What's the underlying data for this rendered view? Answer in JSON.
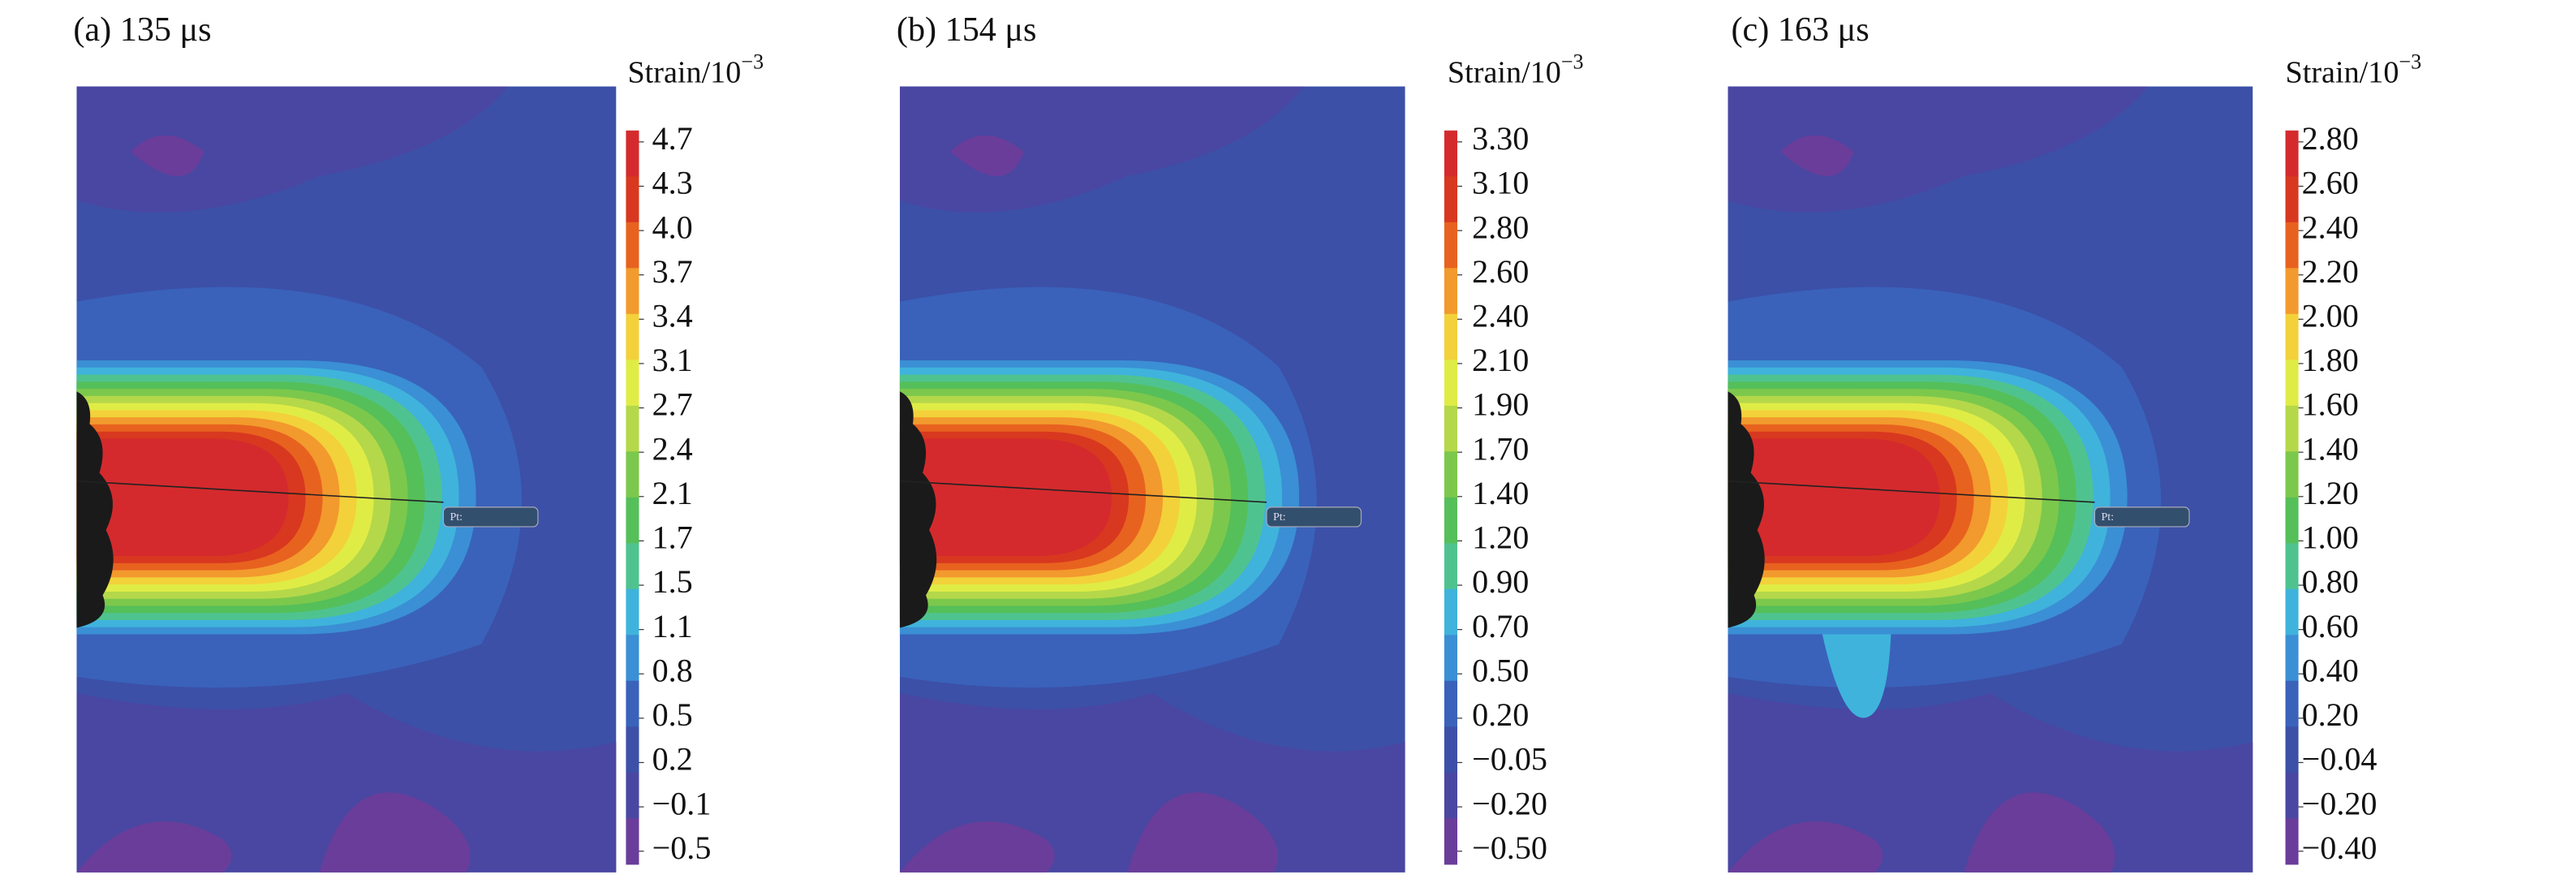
{
  "panels": [
    {
      "title": "(a) 135 μs",
      "colorbar_label": {
        "base": "Strain/10",
        "exponent": "−3"
      },
      "probe_label": "Pt:",
      "ticks": [
        4.7,
        4.3,
        {
          "value": 4,
          "label": "4.0"
        },
        3.7,
        3.4,
        3.1,
        2.7,
        2.4,
        2.1,
        1.7,
        1.5,
        1.1,
        0.8,
        0.5,
        0.2,
        {
          "value": -0.1,
          "label": "−0.1"
        },
        {
          "value": -0.5,
          "label": "−0.5"
        }
      ]
    },
    {
      "title": "(b) 154 μs",
      "colorbar_label": {
        "base": "Strain/10",
        "exponent": "−3"
      },
      "probe_label": "Pt:",
      "ticks": [
        {
          "value": 3.3,
          "label": "3.30"
        },
        {
          "value": 3.1,
          "label": "3.10"
        },
        {
          "value": 2.8,
          "label": "2.80"
        },
        {
          "value": 2.6,
          "label": "2.60"
        },
        {
          "value": 2.4,
          "label": "2.40"
        },
        {
          "value": 2.1,
          "label": "2.10"
        },
        {
          "value": 1.9,
          "label": "1.90"
        },
        {
          "value": 1.7,
          "label": "1.70"
        },
        {
          "value": 1.4,
          "label": "1.40"
        },
        {
          "value": 1.2,
          "label": "1.20"
        },
        {
          "value": 0.9,
          "label": "0.90"
        },
        {
          "value": 0.7,
          "label": "0.70"
        },
        {
          "value": 0.5,
          "label": "0.50"
        },
        {
          "value": 0.2,
          "label": "0.20"
        },
        {
          "value": -0.05,
          "label": "−0.05"
        },
        {
          "value": -0.2,
          "label": "−0.20"
        },
        {
          "value": -0.5,
          "label": "−0.50"
        }
      ]
    },
    {
      "title": "(c) 163 μs",
      "colorbar_label": {
        "base": "Strain/10",
        "exponent": "−3"
      },
      "probe_label": "Pt:",
      "ticks": [
        {
          "value": 2.8,
          "label": "2.80"
        },
        {
          "value": 2.6,
          "label": "2.60"
        },
        {
          "value": 2.4,
          "label": "2.40"
        },
        {
          "value": 2.2,
          "label": "2.20"
        },
        {
          "value": 2,
          "label": "2.00"
        },
        {
          "value": 1.8,
          "label": "1.80"
        },
        {
          "value": 1.6,
          "label": "1.60"
        },
        {
          "value": 1.4,
          "label": "1.40"
        },
        {
          "value": 1.2,
          "label": "1.20"
        },
        {
          "value": 1,
          "label": "1.00"
        },
        {
          "value": 0.8,
          "label": "0.80"
        },
        {
          "value": 0.6,
          "label": "0.60"
        },
        {
          "value": 0.4,
          "label": "0.40"
        },
        {
          "value": 0.2,
          "label": "0.20"
        },
        {
          "value": -0.04,
          "label": "−0.04"
        },
        {
          "value": -0.2,
          "label": "−0.20"
        },
        {
          "value": -0.4,
          "label": "−0.40"
        }
      ]
    }
  ],
  "colors": [
    "#d42a2d",
    "#d8381f",
    "#e8621f",
    "#f29a2d",
    "#f3d13a",
    "#e0ec46",
    "#b4d84a",
    "#7cc84c",
    "#55bf5a",
    "#4fc38f",
    "#3fb3dc",
    "#3b8fd4",
    "#3a62ba",
    "#3c50a8",
    "#4947a2",
    "#6a3d9a"
  ]
}
